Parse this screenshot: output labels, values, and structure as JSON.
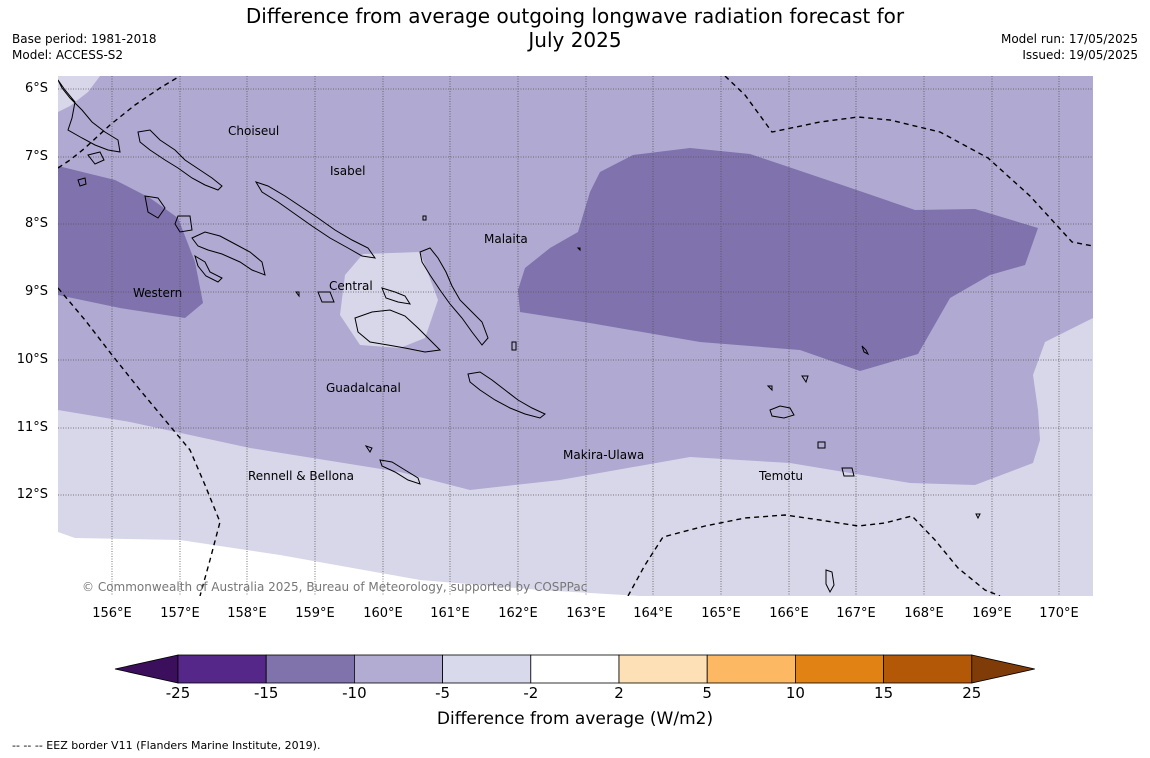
{
  "header": {
    "title_line1": "Difference from average outgoing longwave radiation forecast for",
    "title_line2": "July 2025",
    "base_period": "Base period: 1981-2018",
    "model": "Model: ACCESS-S2",
    "model_run": "Model run: 17/05/2025",
    "issued": "Issued: 19/05/2025"
  },
  "map": {
    "lat_ticks": [
      "6°S",
      "7°S",
      "8°S",
      "9°S",
      "10°S",
      "11°S",
      "12°S"
    ],
    "lon_ticks": [
      "156°E",
      "157°E",
      "158°E",
      "159°E",
      "160°E",
      "161°E",
      "162°E",
      "163°E",
      "164°E",
      "165°E",
      "166°E",
      "167°E",
      "168°E",
      "169°E",
      "170°E"
    ],
    "regions": [
      "Choiseul",
      "Isabel",
      "Malaita",
      "Western",
      "Central",
      "Guadalcanal",
      "Makira-Ulawa",
      "Rennell & Bellona",
      "Temotu"
    ],
    "copyright": "© Commonwealth of Australia 2025, Bureau of Meteorology, supported by COSPPac",
    "colors": {
      "band_-15_-10": "#7f72ad",
      "band_-10_-5": "#b0a9d1",
      "band_-5_-2": "#d8d7ea",
      "band_-2_2": "#ffffff",
      "coastline": "#000000",
      "eez_border": "#000000"
    }
  },
  "colorbar": {
    "labels": [
      "-25",
      "-15",
      "-10",
      "-5",
      "-2",
      "2",
      "5",
      "10",
      "15",
      "25"
    ],
    "colors": [
      "#3b0f5c",
      "#542788",
      "#8073ac",
      "#b2abd2",
      "#d8daeb",
      "#ffffff",
      "#fee0b6",
      "#fdb863",
      "#e08214",
      "#b35806",
      "#7f3b08"
    ],
    "title": "Difference from average (W/m2)"
  },
  "footer": {
    "eez_note": "--  --  -- EEZ border V11 (Flanders Marine Institute, 2019)."
  }
}
